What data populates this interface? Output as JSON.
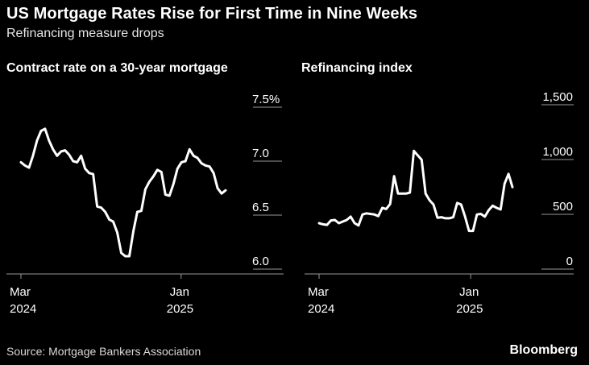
{
  "title": "US Mortgage Rates Rise for First Time in Nine Weeks",
  "subtitle": "Refinancing measure drops",
  "source": "Source: Mortgage Bankers Association",
  "brand": "Bloomberg",
  "colors": {
    "background": "#000000",
    "line": "#ffffff",
    "axis": "#999999",
    "text": "#ffffff"
  },
  "chart_data": [
    {
      "type": "line",
      "title": "Contract rate on a 30-year mortgage",
      "xlabel": "",
      "ylabel": "",
      "ylim": [
        6.0,
        7.5
      ],
      "yticks": [
        {
          "value": 7.5,
          "label": "7.5%"
        },
        {
          "value": 7.0,
          "label": "7.0"
        },
        {
          "value": 6.5,
          "label": "6.5"
        },
        {
          "value": 6.0,
          "label": "6.0"
        }
      ],
      "xticks": [
        {
          "week": 0,
          "label": "Mar",
          "sublabel": "2024"
        },
        {
          "week": 44,
          "label": "Jan",
          "sublabel": "2025"
        }
      ],
      "xlim": [
        0,
        58
      ],
      "series": [
        {
          "name": "30-year contract rate",
          "values": [
            6.93,
            6.9,
            6.88,
            6.99,
            7.13,
            7.22,
            7.24,
            7.13,
            7.05,
            6.99,
            7.03,
            7.04,
            7.0,
            6.94,
            6.93,
            6.99,
            6.87,
            6.83,
            6.82,
            6.52,
            6.51,
            6.47,
            6.4,
            6.38,
            6.28,
            6.09,
            6.06,
            6.06,
            6.29,
            6.47,
            6.48,
            6.68,
            6.75,
            6.8,
            6.86,
            6.84,
            6.63,
            6.62,
            6.73,
            6.87,
            6.93,
            6.94,
            7.05,
            6.99,
            6.97,
            6.92,
            6.9,
            6.89,
            6.83,
            6.69,
            6.64,
            6.67
          ]
        }
      ]
    },
    {
      "type": "line",
      "title": "Refinancing index",
      "xlabel": "",
      "ylabel": "",
      "ylim": [
        0,
        1500
      ],
      "yticks": [
        {
          "value": 1500,
          "label": "1,500"
        },
        {
          "value": 1000,
          "label": "1,000"
        },
        {
          "value": 500,
          "label": "500"
        },
        {
          "value": 0,
          "label": "0"
        }
      ],
      "xticks": [
        {
          "week": 0,
          "label": "Mar",
          "sublabel": "2024"
        },
        {
          "week": 44,
          "label": "Jan",
          "sublabel": "2025"
        }
      ],
      "xlim": [
        0,
        58
      ],
      "series": [
        {
          "name": "Refinancing index",
          "values": [
            360,
            350,
            345,
            385,
            390,
            360,
            375,
            390,
            420,
            360,
            340,
            440,
            450,
            445,
            440,
            425,
            500,
            490,
            535,
            790,
            630,
            630,
            630,
            640,
            1020,
            980,
            940,
            630,
            570,
            530,
            410,
            415,
            405,
            405,
            415,
            545,
            530,
            420,
            290,
            290,
            440,
            445,
            420,
            480,
            520,
            500,
            485,
            720,
            810,
            690
          ]
        }
      ]
    }
  ]
}
